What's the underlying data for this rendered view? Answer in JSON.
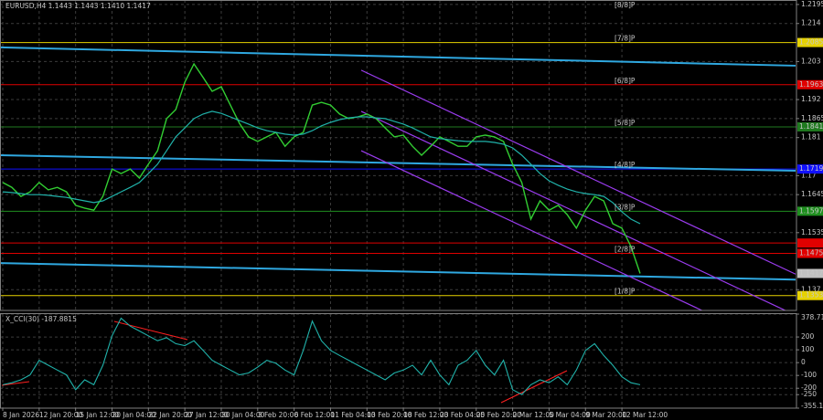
{
  "chart_data": {
    "type": "line",
    "title": "EURUSD,H4  1.1443 1.1443 1.1410 1.1417",
    "categories": [
      "8 Jan 2026",
      null,
      null,
      null,
      "12 Jan 20:00",
      null,
      null,
      null,
      "15 Jan 12:00",
      null,
      null,
      null,
      "20 Jan 04:00",
      null,
      null,
      null,
      "22 Jan 20:00",
      null,
      null,
      null,
      "27 Jan 12:00",
      null,
      null,
      null,
      "30 Jan 04:00",
      null,
      null,
      null,
      "3 Feb 20:00",
      null,
      null,
      null,
      "6 Feb 12:00",
      null,
      null,
      null,
      "11 Feb 04:00",
      null,
      null,
      null,
      "13 Feb 20:00",
      null,
      null,
      null,
      "18 Feb 12:00",
      null,
      null,
      null,
      "23 Feb 04:00",
      null,
      null,
      null,
      "25 Feb 20:00",
      null,
      null,
      null,
      "2 Mar 12:00",
      null,
      null,
      null,
      "5 Mar 04:00",
      null,
      null,
      null,
      "9 Mar 20:00",
      null,
      null,
      null,
      "12 Mar 12:00",
      null,
      null
    ],
    "series": [
      {
        "color": "#32cd32",
        "values": [
          1.168,
          1.1666,
          1.164,
          1.1653,
          1.168,
          1.1659,
          1.1666,
          1.1653,
          1.1614,
          1.1606,
          1.16,
          1.164,
          1.1719,
          1.1706,
          1.1719,
          1.1693,
          1.1733,
          1.1772,
          1.1865,
          1.1891,
          1.197,
          1.2023,
          1.1984,
          1.1944,
          1.1957,
          1.1904,
          1.1851,
          1.1812,
          1.1799,
          1.1812,
          1.1825,
          1.1785,
          1.1812,
          1.1825,
          1.1904,
          1.1912,
          1.1904,
          1.1878,
          1.1865,
          1.187,
          1.1878,
          1.1865,
          1.1838,
          1.1812,
          1.1817,
          1.1785,
          1.1759,
          1.1785,
          1.1812,
          1.1799,
          1.1785,
          1.1785,
          1.1812,
          1.1817,
          1.1812,
          1.1799,
          1.1733,
          1.168,
          1.1574,
          1.1627,
          1.16,
          1.1614,
          1.1587,
          1.1548,
          1.16,
          1.164,
          1.1627,
          1.1561,
          1.1548,
          1.1495,
          1.1417
        ]
      },
      {
        "color": "#20b2aa",
        "values": [
          1.1653,
          1.1651,
          1.1648,
          1.1645,
          1.1645,
          1.1643,
          1.164,
          1.1637,
          1.1632,
          1.1627,
          1.1622,
          1.1627,
          1.164,
          1.1653,
          1.1666,
          1.168,
          1.1706,
          1.1733,
          1.1772,
          1.1812,
          1.1838,
          1.1865,
          1.1878,
          1.1886,
          1.188,
          1.187,
          1.1859,
          1.1849,
          1.1838,
          1.183,
          1.1825,
          1.182,
          1.1817,
          1.182,
          1.183,
          1.1844,
          1.1854,
          1.1862,
          1.1867,
          1.187,
          1.187,
          1.1867,
          1.1865,
          1.1857,
          1.1849,
          1.1838,
          1.1825,
          1.1812,
          1.1807,
          1.1804,
          1.1801,
          1.1799,
          1.1799,
          1.1799,
          1.1796,
          1.1791,
          1.178,
          1.1759,
          1.1733,
          1.1706,
          1.1685,
          1.1672,
          1.1661,
          1.1653,
          1.1648,
          1.1645,
          1.164,
          1.1622,
          1.1595,
          1.1574,
          1.1561
        ]
      }
    ],
    "ylim": [
      1.131,
      1.2208
    ],
    "yticks": [
      1.2195,
      1.214,
      1.203,
      1.192,
      1.1865,
      1.181,
      1.17,
      1.1645,
      1.1535,
      1.137
    ],
    "grid": true,
    "current_price": 1.1417,
    "levels": [
      {
        "label": "[8/8]P",
        "value": 1.2207,
        "color": "#2e8b57"
      },
      {
        "label": "[7/8]P",
        "value": 1.2085,
        "color": "#e6d200"
      },
      {
        "label": "[6/8]P",
        "value": 1.1963,
        "color": "#e00000"
      },
      {
        "label": "[5/8]P",
        "value": 1.1841,
        "color": "#1f7a1f"
      },
      {
        "label": "[4/8]P",
        "value": 1.1719,
        "color": "#1010ff"
      },
      {
        "label": "[3/8]P",
        "value": 1.1597,
        "color": "#1f8f1f"
      },
      {
        "label": "[2/8]P",
        "value": 1.1475,
        "color": "#e00000"
      },
      {
        "label": "[1/8]P",
        "value": 1.1353,
        "color": "#e6d200"
      }
    ],
    "hlines": [
      {
        "value": 1.1505,
        "color": "#e00000"
      }
    ],
    "trendlines": [
      {
        "color": "#2fa8e0",
        "start": 1.2071,
        "end": 1.2018
      },
      {
        "color": "#2fa8e0",
        "start": 1.1759,
        "end": 1.1714
      },
      {
        "color": "#2fa8e0",
        "start": 1.1447,
        "end": 1.1399
      }
    ],
    "channel": [
      {
        "color": "#9b3cf0",
        "start": 1.2005,
        "end": 1.1415
      },
      {
        "color": "#9b3cf0",
        "start": 1.1886,
        "end": 1.1296
      },
      {
        "color": "#9b3cf0",
        "start": 1.1772,
        "end": 1.1183
      }
    ],
    "indicator": {
      "title": "X_CCI(30) -187.8815",
      "color": "#20b2aa",
      "values": [
        -173,
        -157,
        -134,
        -96,
        18,
        -20,
        -58,
        -96,
        -211,
        -134,
        -173,
        -20,
        209,
        347,
        285,
        247,
        209,
        171,
        194,
        148,
        133,
        171,
        95,
        18,
        -20,
        -58,
        -96,
        -81,
        -35,
        18,
        -5,
        -58,
        -96,
        95,
        324,
        171,
        95,
        56,
        18,
        -20,
        -58,
        -96,
        -134,
        -81,
        -58,
        -20,
        -96,
        18,
        -96,
        -173,
        -20,
        18,
        95,
        -20,
        -96,
        18,
        -211,
        -249,
        -173,
        -134,
        -157,
        -111,
        -173,
        -58,
        95,
        148,
        56,
        -20,
        -111,
        -157,
        -173
      ],
      "ylim": [
        -355.1899,
        378.7116
      ],
      "yticks": [
        378.7116,
        200,
        100,
        0,
        -100,
        -200,
        -250,
        -355.1899
      ]
    }
  }
}
